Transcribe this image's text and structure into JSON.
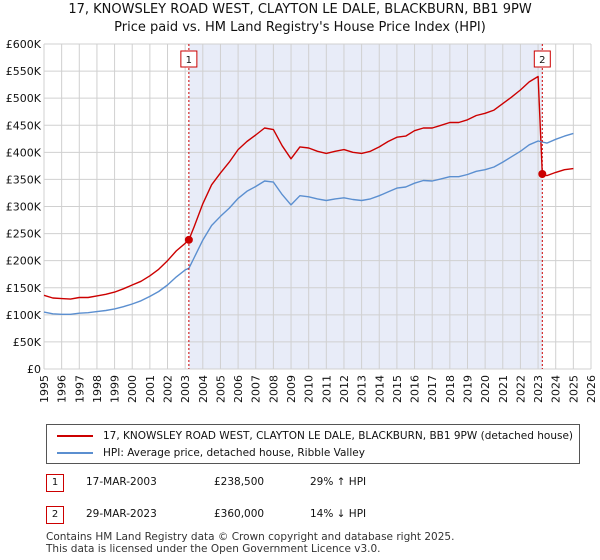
{
  "title_line1": "17, KNOWSLEY ROAD WEST, CLAYTON LE DALE, BLACKBURN, BB1 9PW",
  "title_line2": "Price paid vs. HM Land Registry's House Price Index (HPI)",
  "chart_data": {
    "type": "line",
    "title": "17, KNOWSLEY ROAD WEST, CLAYTON LE DALE, BLACKBURN, BB1 9PW",
    "subtitle": "Price paid vs. HM Land Registry's House Price Index (HPI)",
    "xlabel": "",
    "ylabel": "",
    "xlim": [
      1995,
      2026
    ],
    "ylim": [
      0,
      600000
    ],
    "x_ticks": [
      1995,
      1996,
      1997,
      1998,
      1999,
      2000,
      2001,
      2002,
      2003,
      2004,
      2005,
      2006,
      2007,
      2008,
      2009,
      2010,
      2011,
      2012,
      2013,
      2014,
      2015,
      2016,
      2017,
      2018,
      2019,
      2020,
      2021,
      2022,
      2023,
      2024,
      2025,
      2026
    ],
    "y_ticks": [
      0,
      50000,
      100000,
      150000,
      200000,
      250000,
      300000,
      350000,
      400000,
      450000,
      500000,
      550000,
      600000
    ],
    "y_tick_labels": [
      "£0",
      "£50K",
      "£100K",
      "£150K",
      "£200K",
      "£250K",
      "£300K",
      "£350K",
      "£400K",
      "£450K",
      "£500K",
      "£550K",
      "£600K"
    ],
    "grid": true,
    "shaded_range": [
      2003.21,
      2023.24
    ],
    "x": [
      1995.0,
      1995.5,
      1996.0,
      1996.5,
      1997.0,
      1997.5,
      1998.0,
      1998.5,
      1999.0,
      1999.5,
      2000.0,
      2000.5,
      2001.0,
      2001.5,
      2002.0,
      2002.5,
      2003.0,
      2003.21,
      2003.5,
      2004.0,
      2004.5,
      2005.0,
      2005.5,
      2006.0,
      2006.5,
      2007.0,
      2007.5,
      2008.0,
      2008.5,
      2009.0,
      2009.5,
      2010.0,
      2010.5,
      2011.0,
      2011.5,
      2012.0,
      2012.5,
      2013.0,
      2013.5,
      2014.0,
      2014.5,
      2015.0,
      2015.5,
      2016.0,
      2016.5,
      2017.0,
      2017.5,
      2018.0,
      2018.5,
      2019.0,
      2019.5,
      2020.0,
      2020.5,
      2021.0,
      2021.5,
      2022.0,
      2022.5,
      2023.0,
      2023.24,
      2023.5,
      2024.0,
      2024.5,
      2025.0
    ],
    "series": [
      {
        "name": "17, KNOWSLEY ROAD WEST, CLAYTON LE DALE, BLACKBURN, BB1 9PW (detached house)",
        "color": "#cc0000",
        "values": [
          136000,
          131000,
          130000,
          129000,
          132000,
          132000,
          135000,
          138000,
          142000,
          148000,
          155000,
          162000,
          172000,
          184000,
          200000,
          218000,
          232000,
          238500,
          262000,
          305000,
          340000,
          362000,
          382000,
          405000,
          420000,
          432000,
          445000,
          442000,
          412000,
          388000,
          410000,
          408000,
          402000,
          398000,
          402000,
          405000,
          400000,
          398000,
          402000,
          410000,
          420000,
          428000,
          430000,
          440000,
          445000,
          445000,
          450000,
          455000,
          455000,
          460000,
          468000,
          472000,
          478000,
          490000,
          502000,
          515000,
          530000,
          540000,
          360000,
          357000,
          363000,
          368000,
          370000
        ]
      },
      {
        "name": "HPI: Average price, detached house, Ribble Valley",
        "color": "#5b8fd0",
        "values": [
          105000,
          102000,
          101000,
          101000,
          103000,
          104000,
          106000,
          108000,
          111000,
          115000,
          120000,
          126000,
          134000,
          143000,
          155000,
          170000,
          183000,
          186000,
          205000,
          238000,
          265000,
          282000,
          297000,
          315000,
          328000,
          337000,
          347000,
          345000,
          322000,
          303000,
          320000,
          318000,
          314000,
          311000,
          314000,
          316000,
          313000,
          311000,
          314000,
          320000,
          327000,
          334000,
          336000,
          343000,
          348000,
          347000,
          351000,
          355000,
          355000,
          359000,
          365000,
          368000,
          373000,
          382000,
          392000,
          402000,
          414000,
          421000,
          419000,
          417000,
          424000,
          430000,
          435000
        ]
      }
    ],
    "annotations": [
      {
        "label": "1",
        "x": 2003.21,
        "y": 238500
      },
      {
        "label": "2",
        "x": 2023.24,
        "y": 360000
      }
    ]
  },
  "legend": {
    "series1": "17, KNOWSLEY ROAD WEST, CLAYTON LE DALE, BLACKBURN, BB1 9PW (detached house)",
    "series2": "HPI: Average price, detached house, Ribble Valley"
  },
  "transactions": [
    {
      "label": "1",
      "date": "17-MAR-2003",
      "price": "£238,500",
      "hpi": "29% ↑ HPI"
    },
    {
      "label": "2",
      "date": "29-MAR-2023",
      "price": "£360,000",
      "hpi": "14% ↓ HPI"
    }
  ],
  "footer": {
    "line1": "Contains HM Land Registry data © Crown copyright and database right 2025.",
    "line2": "This data is licensed under the Open Government Licence v3.0."
  },
  "colors": {
    "price_line": "#cc0000",
    "hpi_line": "#5b8fd0",
    "shade": "#e8ecf8"
  }
}
